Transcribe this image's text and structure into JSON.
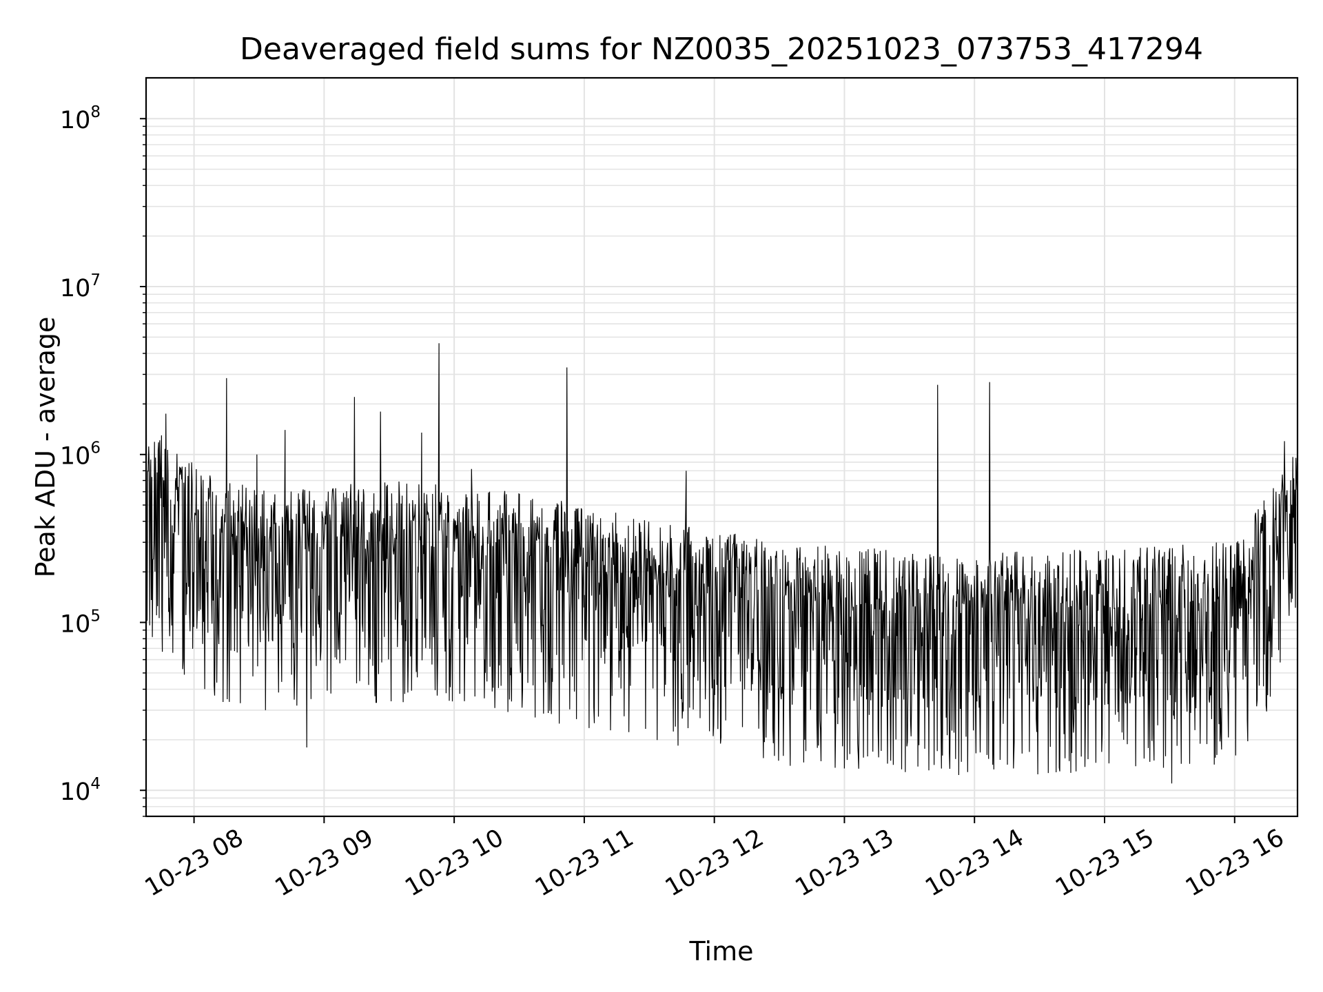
{
  "chart_data": {
    "type": "line",
    "title": "Deaveraged field sums for NZ0035_20251023_073753_417294",
    "xlabel": "Time",
    "ylabel": "Peak ADU - average",
    "y_scale": "log",
    "grid": true,
    "legend": "none",
    "line_color": "#000000",
    "x_range": [
      "2025-10-23 07:37:53",
      "2025-10-23 16:29:00"
    ],
    "ylim": [
      7000,
      175000000
    ],
    "x_ticks": [
      "10-23 08",
      "10-23 09",
      "10-23 10",
      "10-23 11",
      "10-23 12",
      "10-23 13",
      "10-23 14",
      "10-23 15",
      "10-23 16"
    ],
    "y_ticks": [
      {
        "base": "10",
        "exp": "4",
        "value": 10000
      },
      {
        "base": "10",
        "exp": "5",
        "value": 100000
      },
      {
        "base": "10",
        "exp": "6",
        "value": 1000000
      },
      {
        "base": "10",
        "exp": "7",
        "value": 10000000
      },
      {
        "base": "10",
        "exp": "8",
        "value": 100000000
      }
    ],
    "baseline": [
      {
        "x": "2025-10-23 07:38",
        "y": 600000
      },
      {
        "x": "2025-10-23 07:50",
        "y": 450000
      },
      {
        "x": "2025-10-23 08:10",
        "y": 300000
      },
      {
        "x": "2025-10-23 08:40",
        "y": 250000
      },
      {
        "x": "2025-10-23 09:30",
        "y": 300000
      },
      {
        "x": "2025-10-23 10:30",
        "y": 250000
      },
      {
        "x": "2025-10-23 11:30",
        "y": 170000
      },
      {
        "x": "2025-10-23 12:30",
        "y": 130000
      },
      {
        "x": "2025-10-23 13:30",
        "y": 110000
      },
      {
        "x": "2025-10-23 14:30",
        "y": 110000
      },
      {
        "x": "2025-10-23 15:30",
        "y": 120000
      },
      {
        "x": "2025-10-23 16:00",
        "y": 130000
      },
      {
        "x": "2025-10-23 16:15",
        "y": 250000
      },
      {
        "x": "2025-10-23 16:29",
        "y": 450000
      }
    ],
    "spikes": [
      {
        "x": "2025-10-23 07:38",
        "y": 1500000
      },
      {
        "x": "2025-10-23 07:45",
        "y": 1300000
      },
      {
        "x": "2025-10-23 07:47",
        "y": 1750000
      },
      {
        "x": "2025-10-23 08:15",
        "y": 2850000
      },
      {
        "x": "2025-10-23 08:29",
        "y": 1000000
      },
      {
        "x": "2025-10-23 08:42",
        "y": 1400000
      },
      {
        "x": "2025-10-23 09:14",
        "y": 2200000
      },
      {
        "x": "2025-10-23 09:26",
        "y": 1800000
      },
      {
        "x": "2025-10-23 09:45",
        "y": 1350000
      },
      {
        "x": "2025-10-23 09:53",
        "y": 4600000
      },
      {
        "x": "2025-10-23 10:08",
        "y": 820000
      },
      {
        "x": "2025-10-23 10:52",
        "y": 3300000
      },
      {
        "x": "2025-10-23 11:47",
        "y": 800000
      },
      {
        "x": "2025-10-23 13:43",
        "y": 2600000
      },
      {
        "x": "2025-10-23 14:07",
        "y": 2700000
      },
      {
        "x": "2025-10-23 16:23",
        "y": 1200000
      }
    ],
    "dips": [
      {
        "x": "2025-10-23 08:52",
        "y": 18000
      },
      {
        "x": "2025-10-23 12:35",
        "y": 14000
      },
      {
        "x": "2025-10-23 13:00",
        "y": 13500
      },
      {
        "x": "2025-10-23 14:18",
        "y": 13500
      },
      {
        "x": "2025-10-23 15:31",
        "y": 11000
      }
    ]
  }
}
